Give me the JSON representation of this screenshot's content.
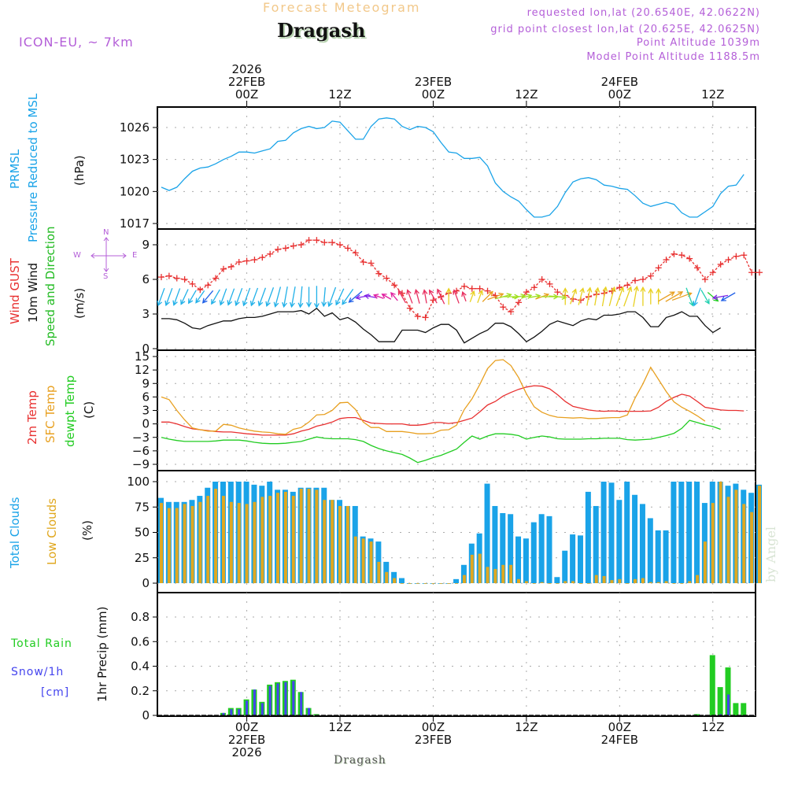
{
  "header": {
    "subtitle": "Forecast Meteogram",
    "title": "Dragash",
    "model": "ICON-EU, ~ 7km",
    "requested": "requested lon,lat (20.6540E, 42.0622N)",
    "grid_point": "grid point closest lon,lat (20.625E, 42.0625N)",
    "point_altitude": "Point Altitude 1039m",
    "model_altitude": "Model Point Altitude 1188.5m"
  },
  "footer": {
    "station": "Dragash",
    "credit": "by Angel"
  },
  "time_axis": {
    "top": [
      {
        "lines": [
          "2026",
          "22FEB",
          "00Z"
        ],
        "hour": 11
      },
      {
        "lines": [
          "12Z"
        ],
        "hour": 23
      },
      {
        "lines": [
          "23FEB",
          "00Z"
        ],
        "hour": 35
      },
      {
        "lines": [
          "12Z"
        ],
        "hour": 47
      },
      {
        "lines": [
          "24FEB",
          "00Z"
        ],
        "hour": 59
      },
      {
        "lines": [
          "12Z"
        ],
        "hour": 71
      }
    ],
    "bottom": [
      {
        "lines": [
          "00Z",
          "22FEB",
          "2026"
        ],
        "hour": 11
      },
      {
        "lines": [
          "12Z"
        ],
        "hour": 23
      },
      {
        "lines": [
          "00Z",
          "23FEB"
        ],
        "hour": 35
      },
      {
        "lines": [
          "12Z"
        ],
        "hour": 47
      },
      {
        "lines": [
          "00Z",
          "24FEB"
        ],
        "hour": 59
      },
      {
        "lines": [
          "12Z"
        ],
        "hour": 71
      }
    ]
  },
  "panels": {
    "pressure": {
      "labels": [
        "PRMSL",
        "Pressure Reduced to MSL"
      ],
      "unit": "(hPa)",
      "colors": [
        "#1aa3e8",
        "#1aa3e8"
      ]
    },
    "wind": {
      "labels": [
        "Wind GUST",
        "10m Wind",
        "Speed and Direction"
      ],
      "unit": "(m/s)",
      "colors": [
        "#e83030",
        "#111111",
        "#22bb22"
      ],
      "compass": {
        "n": "N",
        "s": "S",
        "w": "W",
        "e": "E",
        "arrows": "<--|-->"
      }
    },
    "temp": {
      "labels": [
        "2m Temp",
        "SFC Temp",
        "dewpt Temp"
      ],
      "unit": "(C)",
      "colors": [
        "#e83030",
        "#e8a020",
        "#22cc22"
      ]
    },
    "clouds": {
      "labels": [
        "Total Clouds",
        "Low Clouds"
      ],
      "unit": "(%)",
      "colors": [
        "#1aa3e8",
        "#e0a820"
      ]
    },
    "precip": {
      "labels": [
        "Total  Rain",
        "Snow/1h",
        "[cm]"
      ],
      "unit": "1hr Precip (mm)",
      "colors": [
        "#22cc22",
        "#4444ee",
        "#4444ee"
      ]
    }
  },
  "chart_data": [
    {
      "type": "line",
      "title": "PRMSL Pressure Reduced to MSL",
      "ylabel": "(hPa)",
      "yticks": [
        1017,
        1020,
        1023,
        1026
      ],
      "ylim": [
        1016.8,
        1027.3
      ],
      "x_unit": "hours from 21FEB 13Z",
      "series": [
        {
          "name": "PRMSL",
          "color": "#1aa3e8",
          "values": [
            1020.4,
            1020.1,
            1020.4,
            1021.2,
            1021.9,
            1022.2,
            1022.3,
            1022.6,
            1023.0,
            1023.3,
            1023.7,
            1023.7,
            1023.6,
            1023.8,
            1024.0,
            1024.7,
            1024.8,
            1025.5,
            1025.9,
            1026.1,
            1025.9,
            1026.0,
            1026.6,
            1026.5,
            1025.7,
            1024.9,
            1024.9,
            1026.1,
            1026.8,
            1026.9,
            1026.8,
            1026.1,
            1025.8,
            1026.1,
            1026.0,
            1025.6,
            1024.6,
            1023.7,
            1023.6,
            1023.1,
            1023.1,
            1023.2,
            1022.4,
            1020.8,
            1020.0,
            1019.5,
            1019.1,
            1018.3,
            1017.6,
            1017.6,
            1017.8,
            1018.6,
            1019.9,
            1020.9,
            1021.2,
            1021.3,
            1021.1,
            1020.6,
            1020.5,
            1020.3,
            1020.2,
            1019.6,
            1018.9,
            1018.6,
            1018.8,
            1019.0,
            1018.8,
            1018.0,
            1017.6,
            1017.6,
            1018.1,
            1018.6,
            1019.8,
            1020.5,
            1020.6,
            1021.6
          ]
        }
      ]
    },
    {
      "type": "line",
      "title": "Wind GUST / 10m Wind Speed and Direction",
      "ylabel": "(m/s)",
      "yticks": [
        0,
        3,
        6,
        9
      ],
      "ylim": [
        0,
        10.5
      ],
      "x_unit": "hours from 21FEB 13Z",
      "series": [
        {
          "name": "Wind GUST",
          "color": "#e83030",
          "values": [
            6.2,
            6.3,
            6.1,
            6.0,
            5.6,
            5.1,
            5.5,
            6.1,
            6.9,
            7.1,
            7.5,
            7.6,
            7.7,
            7.9,
            8.2,
            8.6,
            8.7,
            8.9,
            9.0,
            9.4,
            9.4,
            9.2,
            9.2,
            9.0,
            8.7,
            8.3,
            7.5,
            7.4,
            6.5,
            6.1,
            5.5,
            4.8,
            3.5,
            2.8,
            2.7,
            4.2,
            4.5,
            4.8,
            5.0,
            5.4,
            5.2,
            5.2,
            5.0,
            4.6,
            3.6,
            3.2,
            4.0,
            4.9,
            5.3,
            6.0,
            5.6,
            4.9,
            4.6,
            4.3,
            4.2,
            4.5,
            4.7,
            4.8,
            5.0,
            5.3,
            5.5,
            5.9,
            6.0,
            6.3,
            7.0,
            7.7,
            8.2,
            8.1,
            7.8,
            7.0,
            6.0,
            6.6,
            7.3,
            7.7,
            8.0,
            8.1,
            6.6,
            6.6
          ]
        },
        {
          "name": "10m Wind",
          "color": "#111111",
          "values": [
            2.6,
            2.6,
            2.5,
            2.2,
            1.8,
            1.7,
            2.0,
            2.2,
            2.4,
            2.4,
            2.6,
            2.7,
            2.7,
            2.8,
            3.0,
            3.2,
            3.2,
            3.2,
            3.3,
            3.0,
            3.5,
            2.8,
            3.1,
            2.5,
            2.7,
            2.3,
            1.7,
            1.2,
            0.6,
            0.6,
            0.6,
            1.6,
            1.6,
            1.6,
            1.4,
            1.8,
            2.1,
            2.1,
            1.6,
            0.5,
            0.9,
            1.3,
            1.6,
            2.2,
            2.2,
            1.9,
            1.3,
            0.6,
            1.0,
            1.5,
            2.1,
            2.4,
            2.2,
            2.0,
            2.4,
            2.6,
            2.5,
            2.9,
            2.9,
            3.0,
            3.2,
            3.2,
            2.7,
            1.9,
            1.9,
            2.7,
            2.9,
            3.2,
            2.8,
            2.8,
            2.0,
            1.4,
            1.8
          ]
        },
        {
          "name": "Wind direction arrows",
          "note": "coloured arrows; direction toward which wind blows",
          "directions_deg": [
            200,
            200,
            200,
            205,
            210,
            215,
            220,
            210,
            200,
            200,
            200,
            200,
            200,
            200,
            200,
            195,
            190,
            190,
            185,
            180,
            180,
            185,
            200,
            205,
            215,
            230,
            260,
            280,
            290,
            300,
            320,
            330,
            340,
            345,
            350,
            330,
            335,
            0,
            340,
            340,
            20,
            20,
            45,
            70,
            75,
            90,
            80,
            75,
            80,
            70,
            90,
            95,
            0,
            20,
            15,
            10,
            10,
            10,
            15,
            20,
            20,
            10,
            0,
            0,
            0,
            60,
            60,
            70,
            160,
            200,
            150,
            130,
            260,
            240
          ]
        }
      ]
    },
    {
      "type": "line",
      "title": "2m Temp / SFC Temp / dewpt Temp",
      "ylabel": "(C)",
      "yticks": [
        -9,
        -6,
        -3,
        0,
        3,
        6,
        9,
        12,
        15
      ],
      "ylim": [
        -10.5,
        16.5
      ],
      "x_unit": "hours from 21FEB 13Z",
      "series": [
        {
          "name": "2m Temp",
          "color": "#e83030",
          "values": [
            0.4,
            0.4,
            0.0,
            -0.6,
            -1.1,
            -1.3,
            -1.5,
            -1.7,
            -1.8,
            -1.8,
            -2.0,
            -2.2,
            -2.3,
            -2.5,
            -2.5,
            -2.5,
            -2.5,
            -2.2,
            -1.6,
            -1.2,
            -0.5,
            -0.1,
            0.4,
            1.2,
            1.4,
            1.4,
            0.8,
            0.2,
            0.1,
            0.0,
            0.0,
            0.0,
            -0.3,
            -0.3,
            -0.1,
            0.3,
            0.3,
            0.1,
            0.3,
            0.8,
            1.3,
            2.7,
            4.2,
            5.0,
            6.2,
            7.0,
            7.7,
            8.2,
            8.5,
            8.4,
            7.8,
            6.5,
            5.0,
            3.9,
            3.5,
            3.1,
            2.9,
            2.8,
            2.9,
            2.8,
            2.8,
            2.8,
            2.8,
            2.9,
            3.7,
            5.0,
            5.9,
            6.6,
            6.2,
            5.0,
            3.7,
            3.4,
            3.1,
            3.0,
            3.0,
            2.9
          ]
        },
        {
          "name": "SFC Temp",
          "color": "#e8a020",
          "values": [
            6.0,
            5.4,
            3.0,
            0.9,
            -0.9,
            -1.3,
            -1.6,
            -1.6,
            -0.1,
            -0.3,
            -0.9,
            -1.3,
            -1.6,
            -1.8,
            -1.9,
            -2.2,
            -2.3,
            -1.2,
            -0.8,
            0.4,
            2.0,
            2.1,
            3.0,
            4.7,
            4.8,
            3.2,
            0.4,
            -0.8,
            -0.8,
            -1.7,
            -1.7,
            -1.7,
            -1.9,
            -2.2,
            -2.2,
            -2.1,
            -1.4,
            -1.3,
            -0.3,
            3.2,
            5.6,
            8.8,
            12.3,
            14.1,
            14.3,
            13.0,
            10.3,
            6.7,
            3.8,
            2.6,
            1.9,
            1.5,
            1.4,
            1.3,
            1.4,
            1.2,
            1.2,
            1.3,
            1.4,
            1.4,
            2.0,
            5.8,
            8.9,
            12.6,
            9.9,
            7.2,
            4.9,
            3.7,
            2.8,
            1.8,
            0.6
          ]
        },
        {
          "name": "dewpt Temp",
          "color": "#22cc22",
          "values": [
            -3.0,
            -3.4,
            -3.7,
            -3.9,
            -3.9,
            -3.9,
            -3.9,
            -3.8,
            -3.6,
            -3.6,
            -3.6,
            -3.8,
            -4.1,
            -4.3,
            -4.4,
            -4.4,
            -4.3,
            -4.1,
            -3.9,
            -3.4,
            -2.9,
            -3.2,
            -3.3,
            -3.3,
            -3.3,
            -3.5,
            -3.9,
            -4.8,
            -5.5,
            -6.0,
            -6.4,
            -6.8,
            -7.6,
            -8.6,
            -8.1,
            -7.5,
            -7.0,
            -6.3,
            -5.6,
            -4.1,
            -2.7,
            -3.4,
            -2.7,
            -2.2,
            -2.2,
            -2.3,
            -2.6,
            -3.4,
            -3.0,
            -2.7,
            -2.9,
            -3.3,
            -3.4,
            -3.4,
            -3.4,
            -3.3,
            -3.3,
            -3.2,
            -3.2,
            -3.2,
            -3.5,
            -3.6,
            -3.5,
            -3.4,
            -3.0,
            -2.6,
            -2.1,
            -1.0,
            0.8,
            0.3,
            -0.2,
            -0.6,
            -1.2
          ]
        }
      ]
    },
    {
      "type": "bar",
      "title": "Total Clouds / Low Clouds",
      "ylabel": "(%)",
      "yticks": [
        0,
        25,
        50,
        75,
        100
      ],
      "ylim": [
        0,
        108
      ],
      "x_unit": "hours from 21FEB 13Z",
      "series": [
        {
          "name": "Total Clouds",
          "color": "#1aa3e8",
          "values": [
            84,
            80,
            80,
            80,
            82,
            86,
            94,
            100,
            100,
            100,
            100,
            100,
            97,
            96,
            100,
            92,
            92,
            90,
            94,
            94,
            94,
            94,
            82,
            82,
            76,
            76,
            46,
            44,
            41,
            21,
            11,
            5,
            0,
            0,
            0,
            0,
            0,
            0,
            4,
            18,
            39,
            49,
            98,
            76,
            69,
            68,
            46,
            44,
            60,
            68,
            66,
            6,
            32,
            48,
            47,
            90,
            76,
            100,
            99,
            82,
            100,
            87,
            78,
            64,
            52,
            52,
            100,
            100,
            100,
            100,
            79,
            100,
            100,
            96,
            98,
            92,
            89,
            97
          ]
        },
        {
          "name": "Low Clouds",
          "color": "#e0a820",
          "values": [
            79,
            74,
            74,
            78,
            76,
            80,
            86,
            93,
            86,
            80,
            79,
            78,
            80,
            85,
            86,
            89,
            90,
            86,
            93,
            93,
            92,
            82,
            82,
            76,
            76,
            46,
            44,
            41,
            21,
            11,
            5,
            0,
            0,
            0,
            0,
            0,
            0,
            0,
            0,
            8,
            28,
            29,
            16,
            14,
            18,
            18,
            4,
            2,
            0,
            1,
            0,
            0,
            2,
            2,
            0,
            0,
            8,
            7,
            3,
            4,
            0,
            4,
            5,
            1,
            1,
            2,
            0,
            0,
            2,
            8,
            41,
            79,
            100,
            85,
            92,
            78,
            70,
            96
          ]
        }
      ]
    },
    {
      "type": "bar",
      "title": "1hr Precip",
      "ylabel": "1hr Precip (mm)",
      "yticks": [
        0,
        0.2,
        0.4,
        0.6,
        0.8
      ],
      "ylim": [
        0,
        0.97
      ],
      "x_unit": "hours from 21FEB 13Z",
      "series": [
        {
          "name": "Total Rain",
          "color": "#22cc22",
          "values": [
            0,
            0,
            0,
            0,
            0,
            0,
            0,
            0,
            0.02,
            0.06,
            0.06,
            0.13,
            0.21,
            0.11,
            0.25,
            0.27,
            0.28,
            0.29,
            0.19,
            0.06,
            0.01,
            0,
            0,
            0,
            0,
            0,
            0,
            0,
            0,
            0,
            0,
            0,
            0,
            0,
            0,
            0,
            0,
            0,
            0,
            0,
            0,
            0,
            0,
            0,
            0,
            0,
            0,
            0,
            0,
            0,
            0,
            0,
            0,
            0,
            0,
            0,
            0,
            0,
            0,
            0,
            0,
            0,
            0,
            0,
            0,
            0,
            0,
            0,
            0,
            0.01,
            0,
            0.49,
            0.23,
            0.39,
            0.1,
            0.1
          ]
        },
        {
          "name": "Snow/1h",
          "color": "#4444ee",
          "values": [
            0,
            0,
            0,
            0,
            0,
            0,
            0,
            0,
            0.02,
            0.05,
            0.05,
            0.12,
            0.21,
            0.1,
            0.24,
            0.26,
            0.27,
            0.28,
            0.19,
            0.06,
            0,
            0,
            0,
            0,
            0,
            0,
            0,
            0,
            0,
            0,
            0,
            0,
            0,
            0,
            0,
            0,
            0,
            0,
            0,
            0,
            0,
            0,
            0,
            0,
            0,
            0,
            0,
            0,
            0,
            0,
            0,
            0,
            0,
            0,
            0,
            0,
            0,
            0,
            0,
            0,
            0,
            0,
            0,
            0,
            0,
            0,
            0,
            0,
            0,
            0,
            0,
            0,
            0.01,
            0.17,
            0,
            0
          ]
        }
      ]
    }
  ]
}
